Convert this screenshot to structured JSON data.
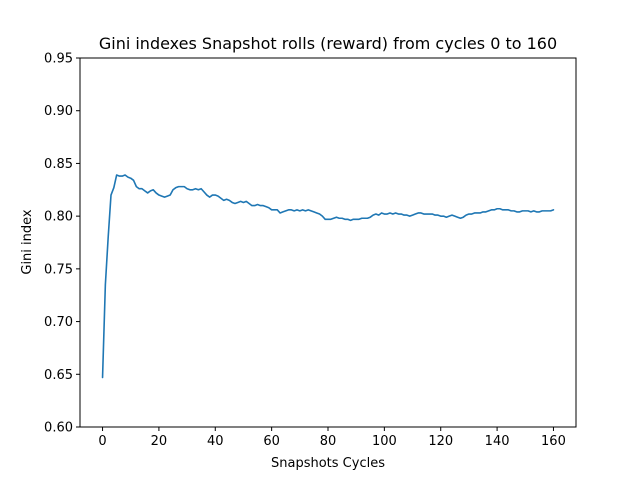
{
  "chart_data": {
    "type": "line",
    "title": "Gini indexes Snapshot rolls (reward) from cycles 0 to 160",
    "xlabel": "Snapshots Cycles",
    "ylabel": "Gini index",
    "xlim": [
      -8,
      168
    ],
    "ylim": [
      0.6,
      0.95
    ],
    "xticks": [
      0,
      20,
      40,
      60,
      80,
      100,
      120,
      140,
      160
    ],
    "yticks": [
      0.6,
      0.65,
      0.7,
      0.75,
      0.8,
      0.85,
      0.9,
      0.95
    ],
    "ytick_labels": [
      "0.60",
      "0.65",
      "0.70",
      "0.75",
      "0.80",
      "0.85",
      "0.90",
      "0.95"
    ],
    "grid": false,
    "series_color": "#1f77b4",
    "series": [
      {
        "x": [
          0,
          1,
          2,
          3,
          4,
          5,
          6,
          7,
          8,
          9,
          10,
          11,
          12,
          13,
          14,
          15,
          16,
          17,
          18,
          19,
          20,
          21,
          22,
          23,
          24,
          25,
          26,
          27,
          28,
          29,
          30,
          31,
          32,
          33,
          34,
          35,
          36,
          37,
          38,
          39,
          40,
          41,
          42,
          43,
          44,
          45,
          46,
          47,
          48,
          49,
          50,
          51,
          52,
          53,
          54,
          55,
          56,
          57,
          58,
          59,
          60,
          61,
          62,
          63,
          64,
          65,
          66,
          67,
          68,
          69,
          70,
          71,
          72,
          73,
          74,
          75,
          76,
          77,
          78,
          79,
          80,
          81,
          82,
          83,
          84,
          85,
          86,
          87,
          88,
          89,
          90,
          91,
          92,
          93,
          94,
          95,
          96,
          97,
          98,
          99,
          100,
          101,
          102,
          103,
          104,
          105,
          106,
          107,
          108,
          109,
          110,
          111,
          112,
          113,
          114,
          115,
          116,
          117,
          118,
          119,
          120,
          121,
          122,
          123,
          124,
          125,
          126,
          127,
          128,
          129,
          130,
          131,
          132,
          133,
          134,
          135,
          136,
          137,
          138,
          139,
          140,
          141,
          142,
          143,
          144,
          145,
          146,
          147,
          148,
          149,
          150,
          151,
          152,
          153,
          154,
          155,
          156,
          157,
          158,
          159,
          160
        ],
        "y": [
          0.647,
          0.735,
          0.78,
          0.82,
          0.827,
          0.839,
          0.838,
          0.838,
          0.839,
          0.837,
          0.836,
          0.834,
          0.828,
          0.826,
          0.826,
          0.824,
          0.822,
          0.824,
          0.825,
          0.822,
          0.82,
          0.819,
          0.818,
          0.819,
          0.82,
          0.825,
          0.827,
          0.828,
          0.828,
          0.828,
          0.826,
          0.825,
          0.825,
          0.826,
          0.825,
          0.826,
          0.823,
          0.82,
          0.818,
          0.82,
          0.82,
          0.819,
          0.817,
          0.815,
          0.816,
          0.815,
          0.813,
          0.812,
          0.813,
          0.814,
          0.813,
          0.814,
          0.812,
          0.81,
          0.81,
          0.811,
          0.81,
          0.81,
          0.809,
          0.808,
          0.806,
          0.806,
          0.806,
          0.803,
          0.804,
          0.805,
          0.806,
          0.806,
          0.805,
          0.806,
          0.805,
          0.806,
          0.805,
          0.806,
          0.805,
          0.804,
          0.803,
          0.802,
          0.8,
          0.797,
          0.797,
          0.797,
          0.798,
          0.799,
          0.798,
          0.798,
          0.797,
          0.797,
          0.796,
          0.797,
          0.797,
          0.797,
          0.798,
          0.798,
          0.798,
          0.799,
          0.801,
          0.802,
          0.801,
          0.803,
          0.802,
          0.802,
          0.803,
          0.802,
          0.803,
          0.802,
          0.802,
          0.801,
          0.801,
          0.8,
          0.801,
          0.802,
          0.803,
          0.803,
          0.802,
          0.802,
          0.802,
          0.802,
          0.801,
          0.801,
          0.8,
          0.8,
          0.799,
          0.8,
          0.801,
          0.8,
          0.799,
          0.798,
          0.799,
          0.801,
          0.802,
          0.802,
          0.803,
          0.803,
          0.803,
          0.804,
          0.804,
          0.805,
          0.806,
          0.806,
          0.807,
          0.807,
          0.806,
          0.806,
          0.806,
          0.805,
          0.805,
          0.804,
          0.804,
          0.805,
          0.805,
          0.805,
          0.804,
          0.805,
          0.804,
          0.804,
          0.805,
          0.805,
          0.805,
          0.805,
          0.806
        ]
      }
    ]
  }
}
